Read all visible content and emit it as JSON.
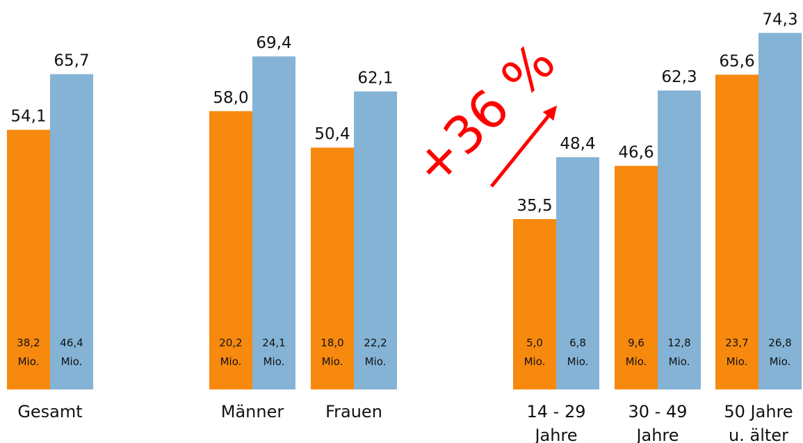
{
  "chart_data": {
    "type": "bar",
    "annotation": "+36 %",
    "categories": [
      [
        "Gesamt"
      ],
      [
        "Männer"
      ],
      [
        "Frauen"
      ],
      [
        "14 - 29",
        "Jahre"
      ],
      [
        "30 - 49",
        "Jahre"
      ],
      [
        "50 Jahre",
        "u. älter"
      ]
    ],
    "series": [
      {
        "color": "#f7890f",
        "values": [
          54.1,
          58.0,
          50.4,
          35.5,
          46.6,
          65.6
        ],
        "value_labels": [
          "54,1",
          "58,0",
          "50,4",
          "35,5",
          "46,6",
          "65,6"
        ],
        "count_labels": [
          [
            "38,2",
            "Mio."
          ],
          [
            "20,2",
            "Mio."
          ],
          [
            "18,0",
            "Mio."
          ],
          [
            "5,0",
            "Mio."
          ],
          [
            "9,6",
            "Mio."
          ],
          [
            "23,7",
            "Mio."
          ]
        ]
      },
      {
        "color": "#84b3d5",
        "values": [
          65.7,
          69.4,
          62.1,
          48.4,
          62.3,
          74.3
        ],
        "value_labels": [
          "65,7",
          "69,4",
          "62,1",
          "48,4",
          "62,3",
          "74,3"
        ],
        "count_labels": [
          [
            "46,4",
            "Mio."
          ],
          [
            "24,1",
            "Mio."
          ],
          [
            "22,2",
            "Mio."
          ],
          [
            "6,8",
            "Mio."
          ],
          [
            "12,8",
            "Mio."
          ],
          [
            "26,8",
            "Mio."
          ]
        ]
      }
    ]
  }
}
